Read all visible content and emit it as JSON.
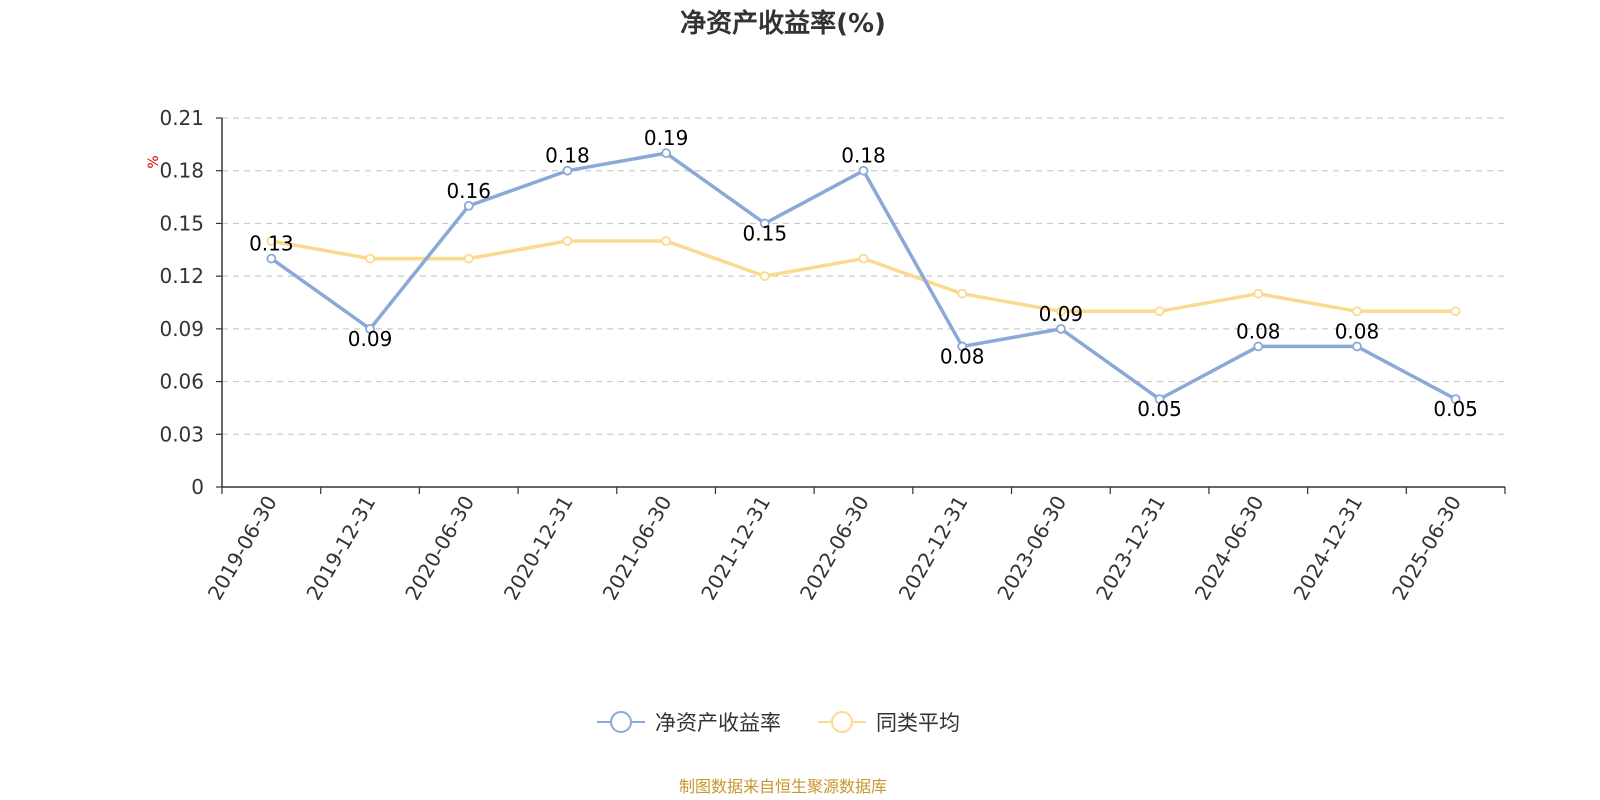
{
  "chart_data": {
    "type": "line",
    "title": "净资产收益率(%)",
    "y_unit": "%",
    "categories": [
      "2019-06-30",
      "2019-12-31",
      "2020-06-30",
      "2020-12-31",
      "2021-06-30",
      "2021-12-31",
      "2022-06-30",
      "2022-12-31",
      "2023-06-30",
      "2023-12-31",
      "2024-06-30",
      "2024-12-31",
      "2025-06-30"
    ],
    "ylim": [
      0,
      0.21
    ],
    "yticks": [
      "0",
      "0.03",
      "0.06",
      "0.09",
      "0.12",
      "0.15",
      "0.18",
      "0.21"
    ],
    "grid": true,
    "legend_position": "bottom",
    "series": [
      {
        "name": "净资产收益率",
        "color": "#8aa9d6",
        "values": [
          0.13,
          0.09,
          0.16,
          0.18,
          0.19,
          0.15,
          0.18,
          0.08,
          0.09,
          0.05,
          0.08,
          0.08,
          0.05
        ],
        "labels": [
          "0.13",
          "0.09",
          "0.16",
          "0.18",
          "0.19",
          "0.15",
          "0.18",
          "0.08",
          "0.09",
          "0.05",
          "0.08",
          "0.08",
          "0.05"
        ]
      },
      {
        "name": "同类平均",
        "color": "#fbd98f",
        "values": [
          0.14,
          0.13,
          0.13,
          0.14,
          0.14,
          0.12,
          0.13,
          0.11,
          0.1,
          0.1,
          0.11,
          0.1,
          0.1
        ]
      }
    ]
  },
  "source_note": "制图数据来自恒生聚源数据库"
}
